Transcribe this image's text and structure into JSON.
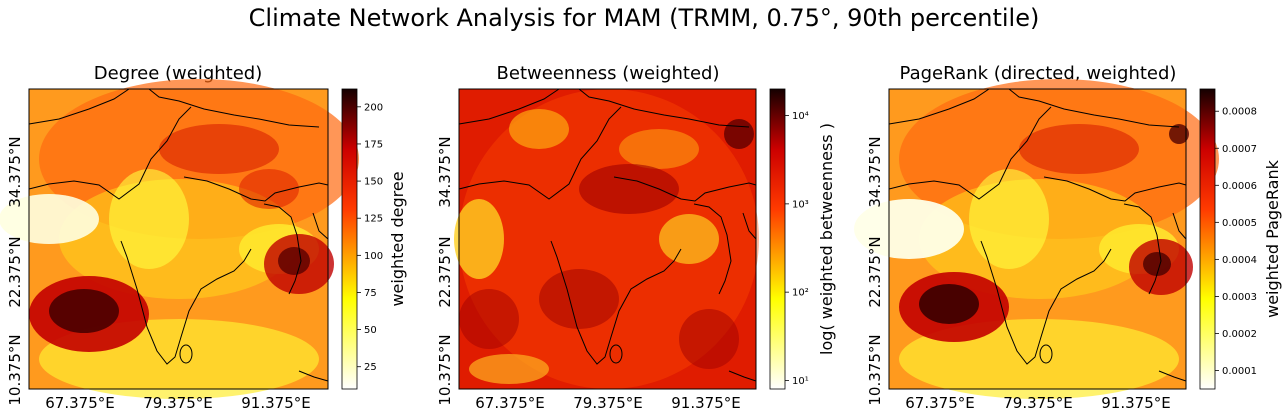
{
  "figure_title": "Climate Network Analysis for MAM (TRMM, 0.75°, 90th percentile)",
  "chart_data": [
    {
      "type": "heatmap",
      "title": "Degree (weighted)",
      "colormap": "hot_r",
      "colorbar_label": "weighted degree",
      "colorbar_scale": "linear",
      "vmin": 10,
      "vmax": 212,
      "colorbar_ticks": [
        25,
        50,
        75,
        100,
        125,
        150,
        175,
        200
      ],
      "colorbar_tick_labels": [
        "25",
        "50",
        "75",
        "100",
        "125",
        "150",
        "175",
        "200"
      ],
      "x_tick_labels": [
        "67.375°E",
        "79.375°E",
        "91.375°E"
      ],
      "y_tick_labels": [
        "10.375°N",
        "22.375°N",
        "34.375°N"
      ],
      "grid": false
    },
    {
      "type": "heatmap",
      "title": "Betweenness (weighted)",
      "colormap": "hot_r",
      "colorbar_label": "log( weighted betweenness )",
      "colorbar_scale": "log",
      "vmin": 8,
      "vmax": 20000,
      "colorbar_ticks": [
        10,
        100,
        1000,
        10000
      ],
      "colorbar_tick_labels": [
        "10¹",
        "10²",
        "10³",
        "10⁴"
      ],
      "x_tick_labels": [
        "67.375°E",
        "79.375°E",
        "91.375°E"
      ],
      "y_tick_labels": [
        "10.375°N",
        "22.375°N",
        "34.375°N"
      ],
      "grid": false
    },
    {
      "type": "heatmap",
      "title": "PageRank (directed, weighted)",
      "colormap": "hot_r",
      "colorbar_label": "weighted PageRank",
      "colorbar_scale": "linear",
      "vmin": 5e-05,
      "vmax": 0.00086,
      "colorbar_ticks": [
        0.0001,
        0.0002,
        0.0003,
        0.0004,
        0.0005,
        0.0006,
        0.0007,
        0.0008
      ],
      "colorbar_tick_labels": [
        "0.0001",
        "0.0002",
        "0.0003",
        "0.0004",
        "0.0005",
        "0.0006",
        "0.0007",
        "0.0008"
      ],
      "x_tick_labels": [
        "67.375°E",
        "79.375°E",
        "91.375°E"
      ],
      "y_tick_labels": [
        "10.375°N",
        "22.375°N",
        "34.375°N"
      ],
      "grid": false
    }
  ]
}
